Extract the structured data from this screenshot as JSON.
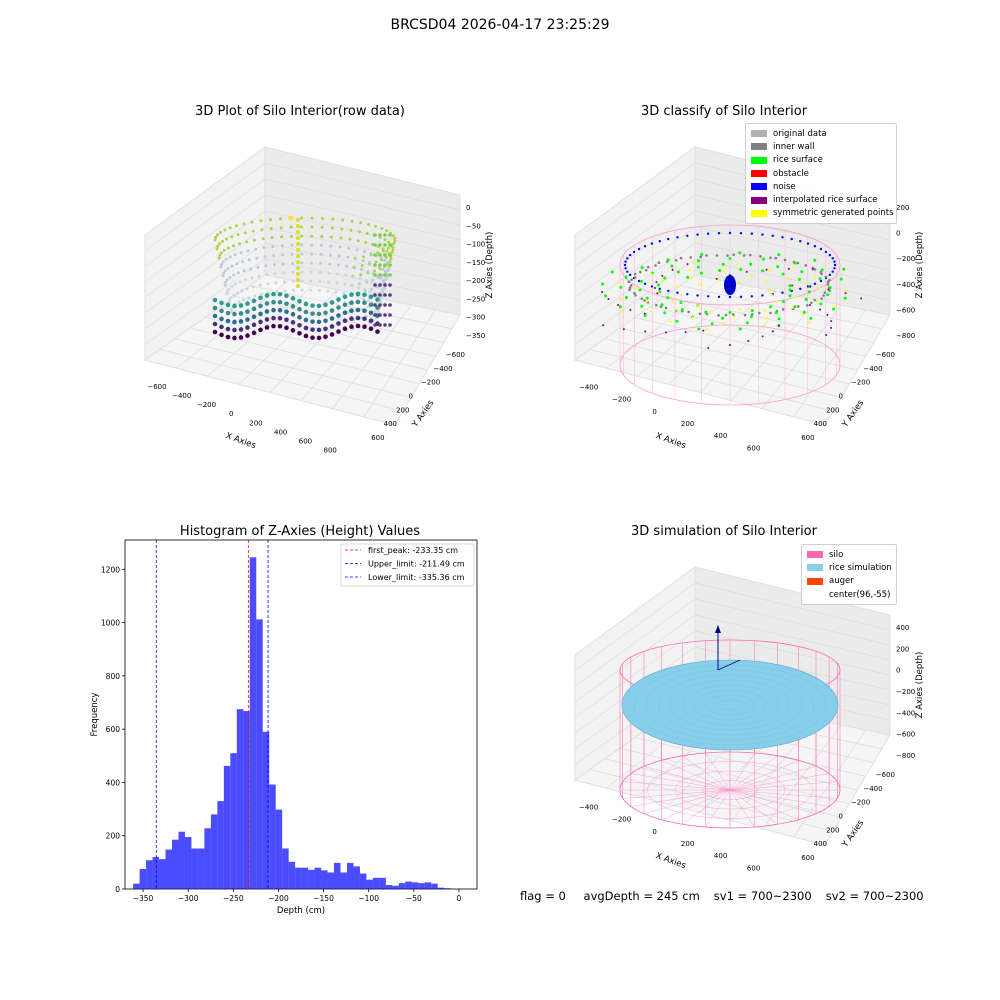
{
  "suptitle": "BRCSD04 2026-04-17 23:25:29",
  "panels": {
    "raw": {
      "title": "3D Plot of Silo Interior(row data)",
      "xlabel": "X Axies",
      "ylabel": "Y Axies",
      "zlabel": "Z Axies (Depth)",
      "xticks": [
        "−600",
        "−400",
        "−200",
        "0",
        "200",
        "400",
        "600",
        "800"
      ],
      "yticks": [
        "600",
        "400",
        "200",
        "0",
        "−200",
        "−400",
        "−600"
      ],
      "zticks": [
        "0",
        "−50",
        "−100",
        "−150",
        "−200",
        "−250",
        "−300",
        "−350"
      ]
    },
    "classify": {
      "title": "3D classify of Silo Interior",
      "xlabel": "X Axies",
      "ylabel": "Y Axies",
      "zlabel": "Z Axies (Depth)",
      "xticks": [
        "−400",
        "−200",
        "0",
        "200",
        "400",
        "600"
      ],
      "yticks": [
        "600",
        "400",
        "200",
        "0",
        "−200",
        "−400",
        "−600"
      ],
      "zticks": [
        "200",
        "0",
        "−200",
        "−400",
        "−600",
        "−800"
      ],
      "legend": [
        {
          "label": "original data",
          "color": "#b0b0b0"
        },
        {
          "label": "inner wall",
          "color": "#808080"
        },
        {
          "label": "rice surface",
          "color": "#00ff00"
        },
        {
          "label": "obstacle",
          "color": "#ff0000"
        },
        {
          "label": "noise",
          "color": "#0000ff"
        },
        {
          "label": "interpolated rice surface",
          "color": "#800080"
        },
        {
          "label": "symmetric generated points",
          "color": "#ffff00"
        }
      ]
    },
    "simulation": {
      "title": "3D simulation of Silo Interior",
      "xlabel": "X Axies",
      "ylabel": "Y Axies",
      "zlabel": "Z Axies (Depth)",
      "xticks": [
        "−400",
        "−200",
        "0",
        "200",
        "400",
        "600"
      ],
      "yticks": [
        "600",
        "400",
        "200",
        "0",
        "−200",
        "−400",
        "−600"
      ],
      "zticks": [
        "400",
        "200",
        "0",
        "−200",
        "−400",
        "−600",
        "−800"
      ],
      "legend": [
        {
          "label": "silo",
          "color": "#ff69b4"
        },
        {
          "label": "rice simulation",
          "color": "#87ceeb"
        },
        {
          "label": "auger",
          "color": "#ff4500"
        },
        {
          "label": "center(96,-55)",
          "color": ""
        }
      ]
    }
  },
  "chart_data": {
    "type": "bar",
    "title": "Histogram of Z-Axies (Height) Values",
    "xlabel": "Depth (cm)",
    "ylabel": "Frequency",
    "xlim": [
      -370,
      20
    ],
    "ylim": [
      0,
      1310
    ],
    "xticks": [
      -350,
      -300,
      -250,
      -200,
      -150,
      -100,
      -50,
      0
    ],
    "yticks": [
      0,
      200,
      400,
      600,
      800,
      1000,
      1200
    ],
    "bar_color": "#0000ff",
    "bin_width": 7.18,
    "bin_start": -361.0,
    "values": [
      20,
      75,
      108,
      120,
      112,
      148,
      185,
      215,
      195,
      152,
      152,
      228,
      280,
      330,
      462,
      510,
      675,
      668,
      1245,
      1012,
      590,
      392,
      298,
      152,
      102,
      80,
      80,
      72,
      80,
      70,
      62,
      98,
      62,
      98,
      85,
      58,
      35,
      42,
      42,
      15,
      12,
      22,
      28,
      25,
      22,
      25,
      20,
      5,
      3
    ],
    "vlines": [
      {
        "label": "first_peak: -233.35 cm",
        "x": -233.35,
        "color": "#ff0000"
      },
      {
        "label": "Upper_limit: -211.49 cm",
        "x": -211.49,
        "color": "#0000ff"
      },
      {
        "label": "Lower_limit: -335.36 cm",
        "x": -335.36,
        "color": "#0000ff"
      }
    ]
  },
  "footer": {
    "flag": "flag = 0",
    "avg": "avgDepth = 245 cm",
    "sv1": "sv1 = 700~2300",
    "sv2": "sv2 = 700~2300"
  }
}
